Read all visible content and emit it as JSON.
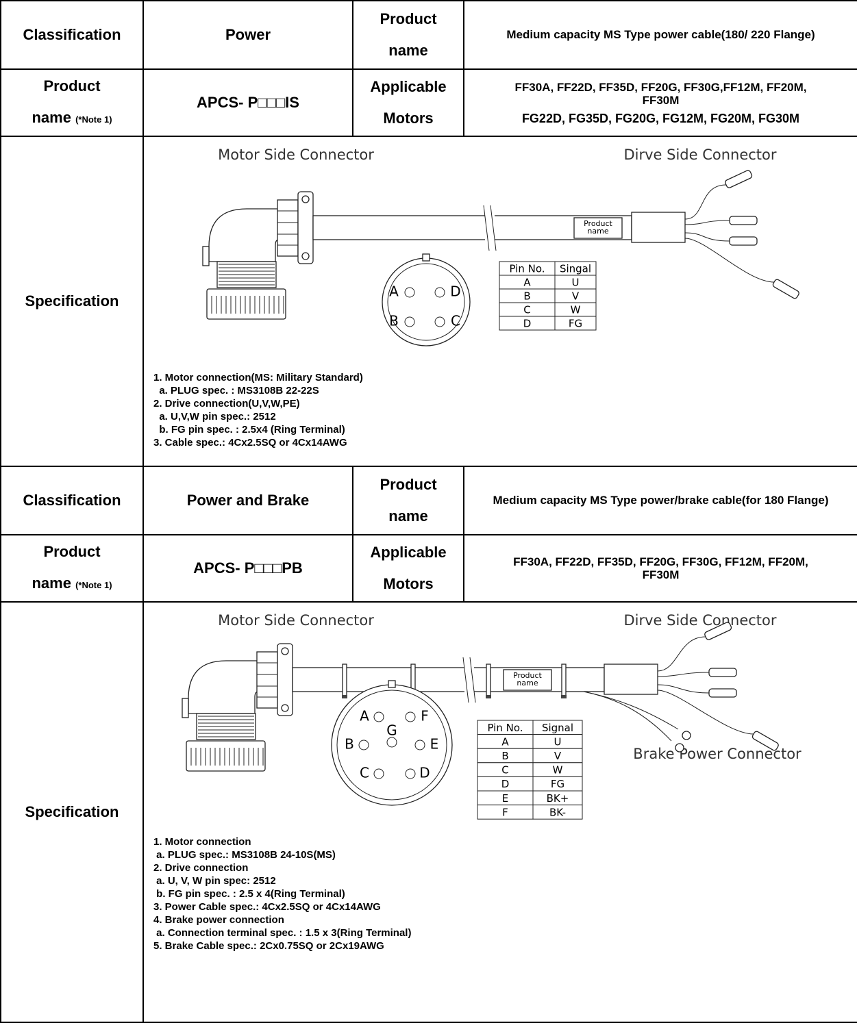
{
  "sections": [
    {
      "classification_label": "Classification",
      "classification": "Power",
      "product_name_label": [
        "Product",
        "name"
      ],
      "product_name": "Medium capacity MS Type power cable(180/ 220 Flange)",
      "model_label": {
        "line1": "Product",
        "line2": "name",
        "note": "(*Note 1)"
      },
      "model": "APCS- P□□□IS",
      "motors_label": [
        "Applicable",
        "Motors"
      ],
      "motors": [
        "FF30A, FF22D, FF35D, FF20G, FF30G,FF12M, FF20M, FF30M",
        "FG22D, FG35D, FG20G, FG12M, FG20M, FG30M"
      ],
      "spec_label": "Specification",
      "spec": {
        "motor_side": "Motor Side Connector",
        "drive_side": "Dirve Side Connector",
        "product_tag": [
          "Product",
          "name"
        ],
        "connector_pins": [
          "A",
          "D",
          "B",
          "C"
        ],
        "pin_table": {
          "header": [
            "Pin No.",
            "Singal"
          ],
          "rows": [
            [
              "A",
              "U"
            ],
            [
              "B",
              "V"
            ],
            [
              "C",
              "W"
            ],
            [
              "D",
              "FG"
            ]
          ]
        },
        "notes": [
          "1. Motor connection(MS: Military Standard)",
          "  a. PLUG spec. : MS3108B 22-22S",
          "2. Drive connection(U,V,W,PE)",
          "  a. U,V,W pin spec.: 2512",
          "  b. FG pin spec. : 2.5x4 (Ring Terminal)",
          "3. Cable spec.: 4Cx2.5SQ or 4Cx14AWG"
        ]
      }
    },
    {
      "classification_label": "Classification",
      "classification": "Power and Brake",
      "product_name_label": [
        "Product",
        "name"
      ],
      "product_name": "Medium capacity MS Type power/brake cable(for 180 Flange)",
      "model_label": {
        "line1": "Product",
        "line2": "name",
        "note": "(*Note 1)"
      },
      "model": "APCS- P□□□PB",
      "motors_label": [
        "Applicable",
        "Motors"
      ],
      "motors": [
        "FF30A, FF22D, FF35D, FF20G, FF30G, FF12M, FF20M, FF30M"
      ],
      "spec_label": "Specification",
      "spec": {
        "motor_side": "Motor Side Connector",
        "drive_side": "Dirve Side Connector",
        "product_tag": [
          "Product",
          "name"
        ],
        "brake_side": "Brake Power Connector",
        "connector_pins": [
          "A",
          "F",
          "G",
          "B",
          "E",
          "C",
          "D"
        ],
        "pin_table": {
          "header": [
            "Pin No.",
            "Signal"
          ],
          "rows": [
            [
              "A",
              "U"
            ],
            [
              "B",
              "V"
            ],
            [
              "C",
              "W"
            ],
            [
              "D",
              "FG"
            ],
            [
              "E",
              "BK+"
            ],
            [
              "F",
              "BK-"
            ]
          ]
        },
        "notes": [
          "1. Motor connection",
          " a. PLUG spec.: MS3108B 24-10S(MS)",
          "2. Drive connection",
          " a. U, V, W pin spec: 2512",
          " b. FG pin spec. : 2.5 x 4(Ring Terminal)",
          "3. Power Cable spec.: 4Cx2.5SQ or 4Cx14AWG",
          "4. Brake power connection",
          " a. Connection terminal spec. : 1.5 x 3(Ring Terminal)",
          "5. Brake Cable spec.: 2Cx0.75SQ or 2Cx19AWG"
        ]
      }
    }
  ]
}
